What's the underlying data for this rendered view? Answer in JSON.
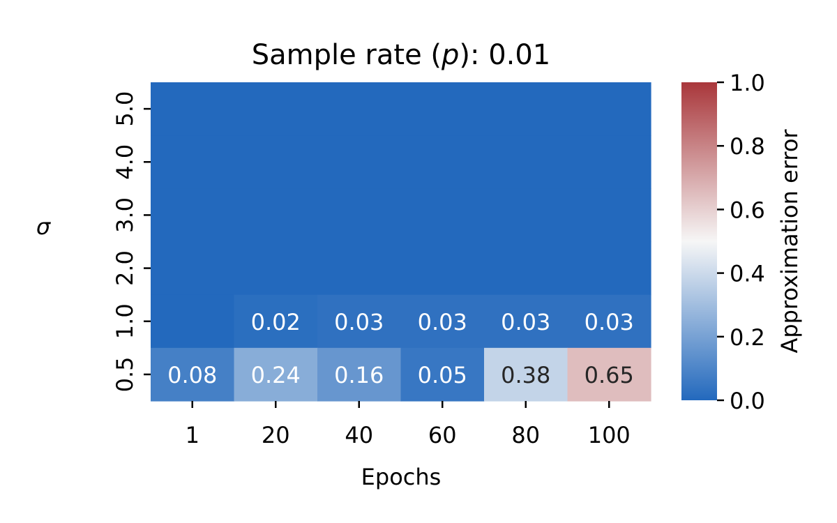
{
  "chart_data": {
    "type": "heatmap",
    "title_prefix": "Sample rate (",
    "title_var": "p",
    "title_suffix": "): 0.01",
    "xlabel": "Epochs",
    "ylabel": "σ",
    "x": [
      "1",
      "20",
      "40",
      "60",
      "80",
      "100"
    ],
    "y": [
      "5.0",
      "4.0",
      "3.0",
      "2.0",
      "1.0",
      "0.5"
    ],
    "values": [
      [
        0.0,
        0.0,
        0.0,
        0.0,
        0.0,
        0.0
      ],
      [
        0.0,
        0.0,
        0.0,
        0.0,
        0.0,
        0.0
      ],
      [
        0.0,
        0.0,
        0.0,
        0.0,
        0.0,
        0.0
      ],
      [
        0.0,
        0.0,
        0.0,
        0.0,
        0.0,
        0.0
      ],
      [
        0.0,
        0.02,
        0.03,
        0.03,
        0.03,
        0.03
      ],
      [
        0.08,
        0.24,
        0.16,
        0.05,
        0.38,
        0.65
      ]
    ],
    "cell_labels": [
      [
        "",
        "",
        "",
        "",
        "",
        ""
      ],
      [
        "",
        "",
        "",
        "",
        "",
        ""
      ],
      [
        "",
        "",
        "",
        "",
        "",
        ""
      ],
      [
        "",
        "",
        "",
        "",
        "",
        ""
      ],
      [
        "",
        "0.02",
        "0.03",
        "0.03",
        "0.03",
        "0.03"
      ],
      [
        "0.08",
        "0.24",
        "0.16",
        "0.05",
        "0.38",
        "0.65"
      ]
    ],
    "colorbar": {
      "label": "Approximation error",
      "vmin": 0.0,
      "vmax": 1.0,
      "ticks": [
        "0.0",
        "0.2",
        "0.4",
        "0.6",
        "0.8",
        "1.0"
      ],
      "colormap": [
        "#2369bd",
        "#f6f6f6",
        "#a9373b"
      ]
    }
  }
}
